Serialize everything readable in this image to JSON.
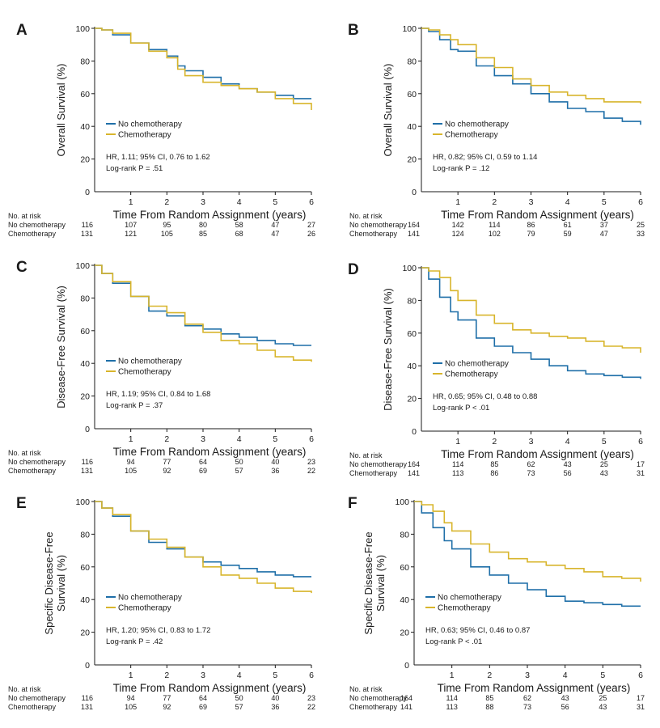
{
  "colors": {
    "no_chemo": "#1f6fa8",
    "chemo": "#d8b52c",
    "axis": "#1a1a1a"
  },
  "risk_header": "No. at risk",
  "chart_data": [
    {
      "panel": "A",
      "type": "line",
      "title": "",
      "ylabel": [
        "Overall Survival (%)"
      ],
      "xlabel": "Time From Random Assignment (years)",
      "xlim": [
        0,
        6
      ],
      "ylim": [
        0,
        100
      ],
      "xticks": [
        1,
        2,
        3,
        4,
        5,
        6
      ],
      "yticks": [
        0,
        20,
        40,
        60,
        80,
        100
      ],
      "legend_position": "middle-left",
      "series": [
        {
          "name": "No chemotherapy",
          "color_key": "no_chemo",
          "x": [
            0,
            0.2,
            0.5,
            1,
            1.5,
            2,
            2.3,
            2.5,
            3,
            3.5,
            4,
            4.5,
            5,
            5.5,
            6
          ],
          "y": [
            100,
            99,
            96,
            91,
            87,
            83,
            77,
            74,
            70,
            66,
            63,
            61,
            59,
            57,
            57
          ]
        },
        {
          "name": "Chemotherapy",
          "color_key": "chemo",
          "x": [
            0,
            0.2,
            0.5,
            1,
            1.5,
            2,
            2.3,
            2.5,
            3,
            3.5,
            4,
            4.5,
            5,
            5.5,
            6
          ],
          "y": [
            100,
            99,
            97,
            91,
            86,
            82,
            75,
            71,
            67,
            65,
            63,
            61,
            57,
            54,
            50
          ]
        }
      ],
      "annotations": [
        "HR, 1.11; 95% CI, 0.76 to 1.62",
        "Log-rank P = .51"
      ],
      "risk_table": [
        {
          "label": "No chemotherapy",
          "values": [
            116,
            107,
            95,
            80,
            58,
            47,
            27
          ]
        },
        {
          "label": "Chemotherapy",
          "values": [
            131,
            121,
            105,
            85,
            68,
            47,
            26
          ]
        }
      ]
    },
    {
      "panel": "B",
      "type": "line",
      "title": "",
      "ylabel": [
        "Overall Survival (%)"
      ],
      "xlabel": "Time From Random Assignment (years)",
      "xlim": [
        0,
        6
      ],
      "ylim": [
        0,
        100
      ],
      "xticks": [
        1,
        2,
        3,
        4,
        5,
        6
      ],
      "yticks": [
        0,
        20,
        40,
        60,
        80,
        100
      ],
      "legend_position": "middle-left",
      "series": [
        {
          "name": "No chemotherapy",
          "color_key": "no_chemo",
          "x": [
            0,
            0.2,
            0.5,
            0.8,
            1,
            1.5,
            2,
            2.5,
            3,
            3.5,
            4,
            4.5,
            5,
            5.5,
            6
          ],
          "y": [
            100,
            98,
            93,
            87,
            86,
            77,
            71,
            66,
            60,
            55,
            51,
            49,
            45,
            43,
            41
          ]
        },
        {
          "name": "Chemotherapy",
          "color_key": "chemo",
          "x": [
            0,
            0.2,
            0.5,
            0.8,
            1,
            1.5,
            2,
            2.5,
            3,
            3.5,
            4,
            4.5,
            5,
            5.5,
            6
          ],
          "y": [
            100,
            99,
            96,
            93,
            90,
            82,
            76,
            69,
            65,
            61,
            59,
            57,
            55,
            55,
            54
          ]
        }
      ],
      "annotations": [
        "HR, 0.82; 95% CI, 0.59 to 1.14",
        "Log-rank P = .12"
      ],
      "risk_table": [
        {
          "label": "No chemotherapy",
          "values": [
            164,
            142,
            114,
            86,
            61,
            37,
            25
          ]
        },
        {
          "label": "Chemotherapy",
          "values": [
            141,
            124,
            102,
            79,
            59,
            47,
            33
          ]
        }
      ]
    },
    {
      "panel": "C",
      "type": "line",
      "title": "",
      "ylabel": [
        "Disease-Free Survival (%)"
      ],
      "xlabel": "Time From Random Assignment (years)",
      "xlim": [
        0,
        6
      ],
      "ylim": [
        0,
        100
      ],
      "xticks": [
        1,
        2,
        3,
        4,
        5,
        6
      ],
      "yticks": [
        0,
        20,
        40,
        60,
        80,
        100
      ],
      "legend_position": "middle-left",
      "series": [
        {
          "name": "No chemotherapy",
          "color_key": "no_chemo",
          "x": [
            0,
            0.2,
            0.5,
            1,
            1.5,
            2,
            2.5,
            3,
            3.5,
            4,
            4.5,
            5,
            5.5,
            6
          ],
          "y": [
            100,
            95,
            89,
            81,
            72,
            69,
            63,
            61,
            58,
            56,
            54,
            52,
            51,
            51
          ]
        },
        {
          "name": "Chemotherapy",
          "color_key": "chemo",
          "x": [
            0,
            0.2,
            0.5,
            1,
            1.5,
            2,
            2.5,
            3,
            3.5,
            4,
            4.5,
            5,
            5.5,
            6
          ],
          "y": [
            100,
            95,
            90,
            81,
            75,
            71,
            64,
            59,
            54,
            52,
            48,
            44,
            42,
            41
          ]
        }
      ],
      "annotations": [
        "HR, 1.19; 95% CI, 0.84 to 1.68",
        "Log-rank P = .37"
      ],
      "risk_table": [
        {
          "label": "No chemotherapy",
          "values": [
            116,
            94,
            77,
            64,
            50,
            40,
            23
          ]
        },
        {
          "label": "Chemotherapy",
          "values": [
            131,
            105,
            92,
            69,
            57,
            36,
            22
          ]
        }
      ]
    },
    {
      "panel": "D",
      "type": "line",
      "title": "",
      "ylabel": [
        "Disease-Free Survival (%)"
      ],
      "xlabel": "Time From Random Assignment (years)",
      "xlim": [
        0,
        6
      ],
      "ylim": [
        0,
        100
      ],
      "xticks": [
        1,
        2,
        3,
        4,
        5,
        6
      ],
      "yticks": [
        0,
        20,
        40,
        60,
        80,
        100
      ],
      "legend_position": "middle-left",
      "series": [
        {
          "name": "No chemotherapy",
          "color_key": "no_chemo",
          "x": [
            0,
            0.2,
            0.5,
            0.8,
            1,
            1.5,
            2,
            2.5,
            3,
            3.5,
            4,
            4.5,
            5,
            5.5,
            6
          ],
          "y": [
            100,
            93,
            82,
            73,
            68,
            57,
            52,
            48,
            44,
            40,
            37,
            35,
            34,
            33,
            32
          ]
        },
        {
          "name": "Chemotherapy",
          "color_key": "chemo",
          "x": [
            0,
            0.2,
            0.5,
            0.8,
            1,
            1.5,
            2,
            2.5,
            3,
            3.5,
            4,
            4.5,
            5,
            5.5,
            6
          ],
          "y": [
            100,
            98,
            94,
            86,
            80,
            71,
            66,
            62,
            60,
            58,
            57,
            55,
            52,
            51,
            48
          ]
        }
      ],
      "annotations": [
        "HR, 0.65; 95% CI, 0.48 to 0.88",
        "Log-rank P < .01"
      ],
      "risk_table": [
        {
          "label": "No chemotherapy",
          "values": [
            164,
            114,
            85,
            62,
            43,
            25,
            17
          ]
        },
        {
          "label": "Chemotherapy",
          "values": [
            141,
            113,
            86,
            73,
            56,
            43,
            31
          ]
        }
      ]
    },
    {
      "panel": "E",
      "type": "line",
      "title": "",
      "ylabel": [
        "Specific Disease-Free",
        "Survival (%)"
      ],
      "xlabel": "Time From Random Assignment (years)",
      "xlim": [
        0,
        6
      ],
      "ylim": [
        0,
        100
      ],
      "xticks": [
        1,
        2,
        3,
        4,
        5,
        6
      ],
      "yticks": [
        0,
        20,
        40,
        60,
        80,
        100
      ],
      "legend_position": "middle-left",
      "series": [
        {
          "name": "No chemotherapy",
          "color_key": "no_chemo",
          "x": [
            0,
            0.2,
            0.5,
            1,
            1.5,
            2,
            2.5,
            3,
            3.5,
            4,
            4.5,
            5,
            5.5,
            6
          ],
          "y": [
            100,
            96,
            91,
            82,
            75,
            71,
            66,
            63,
            61,
            59,
            57,
            55,
            54,
            54
          ]
        },
        {
          "name": "Chemotherapy",
          "color_key": "chemo",
          "x": [
            0,
            0.2,
            0.5,
            1,
            1.5,
            2,
            2.5,
            3,
            3.5,
            4,
            4.5,
            5,
            5.5,
            6
          ],
          "y": [
            100,
            96,
            92,
            82,
            77,
            72,
            66,
            60,
            55,
            53,
            50,
            47,
            45,
            44
          ]
        }
      ],
      "annotations": [
        "HR, 1.20; 95% CI, 0.83 to 1.72",
        "Log-rank P = .42"
      ],
      "risk_table": [
        {
          "label": "No chemotherapy",
          "values": [
            116,
            94,
            77,
            64,
            50,
            40,
            23
          ]
        },
        {
          "label": "Chemotherapy",
          "values": [
            131,
            105,
            92,
            69,
            57,
            36,
            22
          ]
        }
      ]
    },
    {
      "panel": "F",
      "type": "line",
      "title": "",
      "ylabel": [
        "Specific Disease-Free",
        "Survival (%)"
      ],
      "xlabel": "Time From Random Assignment (years)",
      "xlim": [
        0,
        6
      ],
      "ylim": [
        0,
        100
      ],
      "xticks": [
        1,
        2,
        3,
        4,
        5,
        6
      ],
      "yticks": [
        0,
        20,
        40,
        60,
        80,
        100
      ],
      "legend_position": "middle-left",
      "series": [
        {
          "name": "No chemotherapy",
          "color_key": "no_chemo",
          "x": [
            0,
            0.2,
            0.5,
            0.8,
            1,
            1.5,
            2,
            2.5,
            3,
            3.5,
            4,
            4.5,
            5,
            5.5,
            6
          ],
          "y": [
            100,
            93,
            84,
            76,
            71,
            60,
            55,
            50,
            46,
            42,
            39,
            38,
            37,
            36,
            36
          ]
        },
        {
          "name": "Chemotherapy",
          "color_key": "chemo",
          "x": [
            0,
            0.2,
            0.5,
            0.8,
            1,
            1.5,
            2,
            2.5,
            3,
            3.5,
            4,
            4.5,
            5,
            5.5,
            6
          ],
          "y": [
            100,
            98,
            94,
            87,
            82,
            74,
            69,
            65,
            63,
            61,
            59,
            57,
            54,
            53,
            51
          ]
        }
      ],
      "annotations": [
        "HR, 0.63; 95% CI, 0.46 to 0.87",
        "Log-rank P < .01"
      ],
      "risk_table": [
        {
          "label": "No chemotherapy",
          "values": [
            164,
            114,
            85,
            62,
            43,
            25,
            17
          ]
        },
        {
          "label": "Chemotherapy",
          "values": [
            141,
            113,
            88,
            73,
            56,
            43,
            31
          ]
        }
      ]
    }
  ]
}
